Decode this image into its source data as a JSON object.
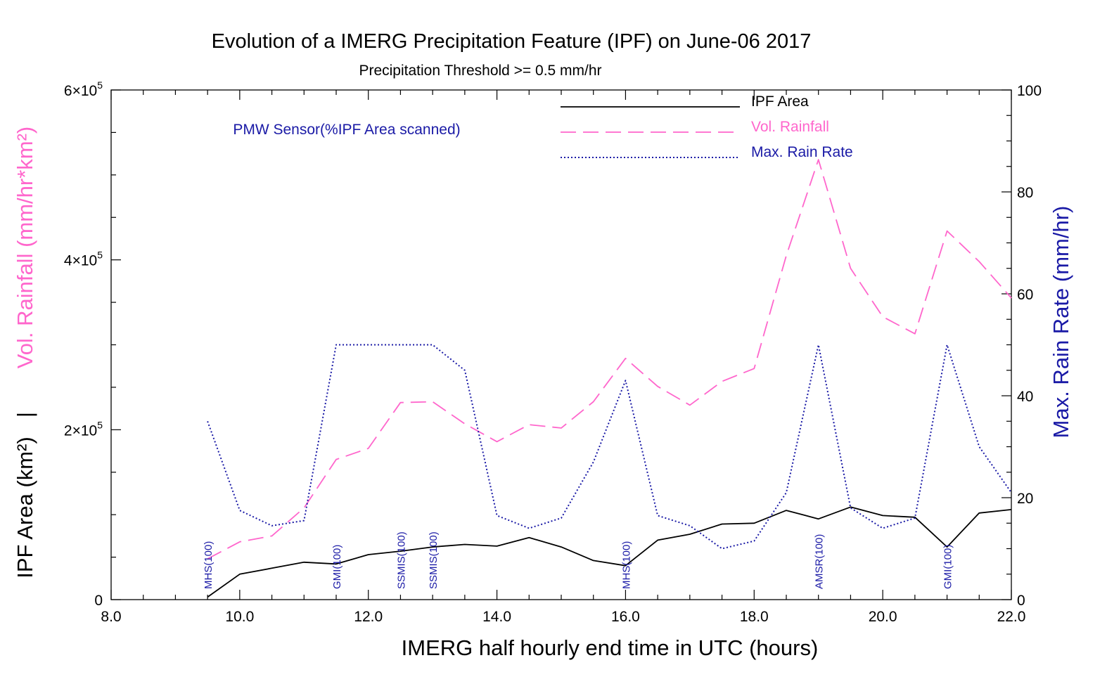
{
  "chart_data": {
    "type": "line",
    "title": "Evolution of a IMERG Precipitation Feature (IPF) on June-06 2017",
    "subtitle": "Precipitation Threshold >= 0.5 mm/hr",
    "xlabel": "IMERG half hourly end time in UTC (hours)",
    "ylabel_left_rain": "Vol. Rainfall (mm/hr*km²)",
    "ylabel_left_sep": "|",
    "ylabel_left_area": "IPF Area (km²)",
    "ylabel_right": "Max. Rain Rate (mm/hr)",
    "xlim": [
      8.0,
      22.0
    ],
    "ylim_left": [
      0,
      600000
    ],
    "ylim_right": [
      0,
      100
    ],
    "x_ticks": [
      "8.0",
      "10.0",
      "12.0",
      "14.0",
      "16.0",
      "18.0",
      "20.0",
      "22.0"
    ],
    "x_tick_values": [
      8,
      10,
      12,
      14,
      16,
      18,
      20,
      22
    ],
    "y_left_ticks": [
      {
        "value": 0,
        "base": "0",
        "exp": ""
      },
      {
        "value": 200000,
        "base": "2×10",
        "exp": "5"
      },
      {
        "value": 400000,
        "base": "4×10",
        "exp": "5"
      },
      {
        "value": 600000,
        "base": "6×10",
        "exp": "5"
      }
    ],
    "y_right_ticks": [
      "0",
      "20",
      "40",
      "60",
      "80",
      "100"
    ],
    "y_right_tick_values": [
      0,
      20,
      40,
      60,
      80,
      100
    ],
    "legend_position": "top-right",
    "sensor_title": "PMW Sensor(%IPF Area scanned)",
    "x": [
      9.5,
      10.0,
      10.5,
      11.0,
      11.5,
      12.0,
      12.5,
      13.0,
      13.5,
      14.0,
      14.5,
      15.0,
      15.5,
      16.0,
      16.5,
      17.0,
      17.5,
      18.0,
      18.5,
      19.0,
      19.5,
      20.0,
      20.5,
      21.0,
      21.5,
      22.0
    ],
    "series": [
      {
        "name": "IPF Area",
        "axis": "left",
        "color": "#000000",
        "dash": "solid",
        "values": [
          3000,
          30000,
          37000,
          44000,
          42000,
          53000,
          57000,
          62000,
          65000,
          63000,
          73000,
          62000,
          46000,
          40000,
          70000,
          77000,
          89000,
          90000,
          105000,
          95000,
          109000,
          99000,
          97000,
          62000,
          102000,
          106000
        ]
      },
      {
        "name": "Vol. Rainfall",
        "axis": "left",
        "color": "#ff66cc",
        "dash": "dashed",
        "values": [
          48000,
          68000,
          75000,
          108000,
          165000,
          178000,
          232000,
          233000,
          207000,
          186000,
          206000,
          202000,
          233000,
          284000,
          251000,
          229000,
          257000,
          272000,
          405000,
          518000,
          390000,
          333000,
          313000,
          434000,
          398000,
          355000
        ]
      },
      {
        "name": "Max. Rain Rate",
        "axis": "right",
        "color": "#1a1aa6",
        "dash": "dotted",
        "values": [
          35,
          17.5,
          14.5,
          15.5,
          50,
          50,
          50,
          50,
          45,
          16.5,
          14,
          16,
          27,
          43,
          16.5,
          14.5,
          10,
          11.5,
          21,
          50,
          18,
          14,
          16,
          50,
          30,
          21
        ]
      }
    ],
    "sensor_annotations": [
      {
        "x": 9.5,
        "label": "MHS(100)"
      },
      {
        "x": 11.5,
        "label": "GMI(100)"
      },
      {
        "x": 12.5,
        "label": "SSMIS(100)"
      },
      {
        "x": 13.0,
        "label": "SSMIS(100)"
      },
      {
        "x": 16.0,
        "label": "MHS(100)"
      },
      {
        "x": 19.0,
        "label": "AMSR(100)"
      },
      {
        "x": 21.0,
        "label": "GMI(100)"
      }
    ],
    "colors": {
      "area": "#000000",
      "rain": "#ff66cc",
      "rate": "#1a1aa6",
      "sensor": "#1a1aa6"
    }
  }
}
